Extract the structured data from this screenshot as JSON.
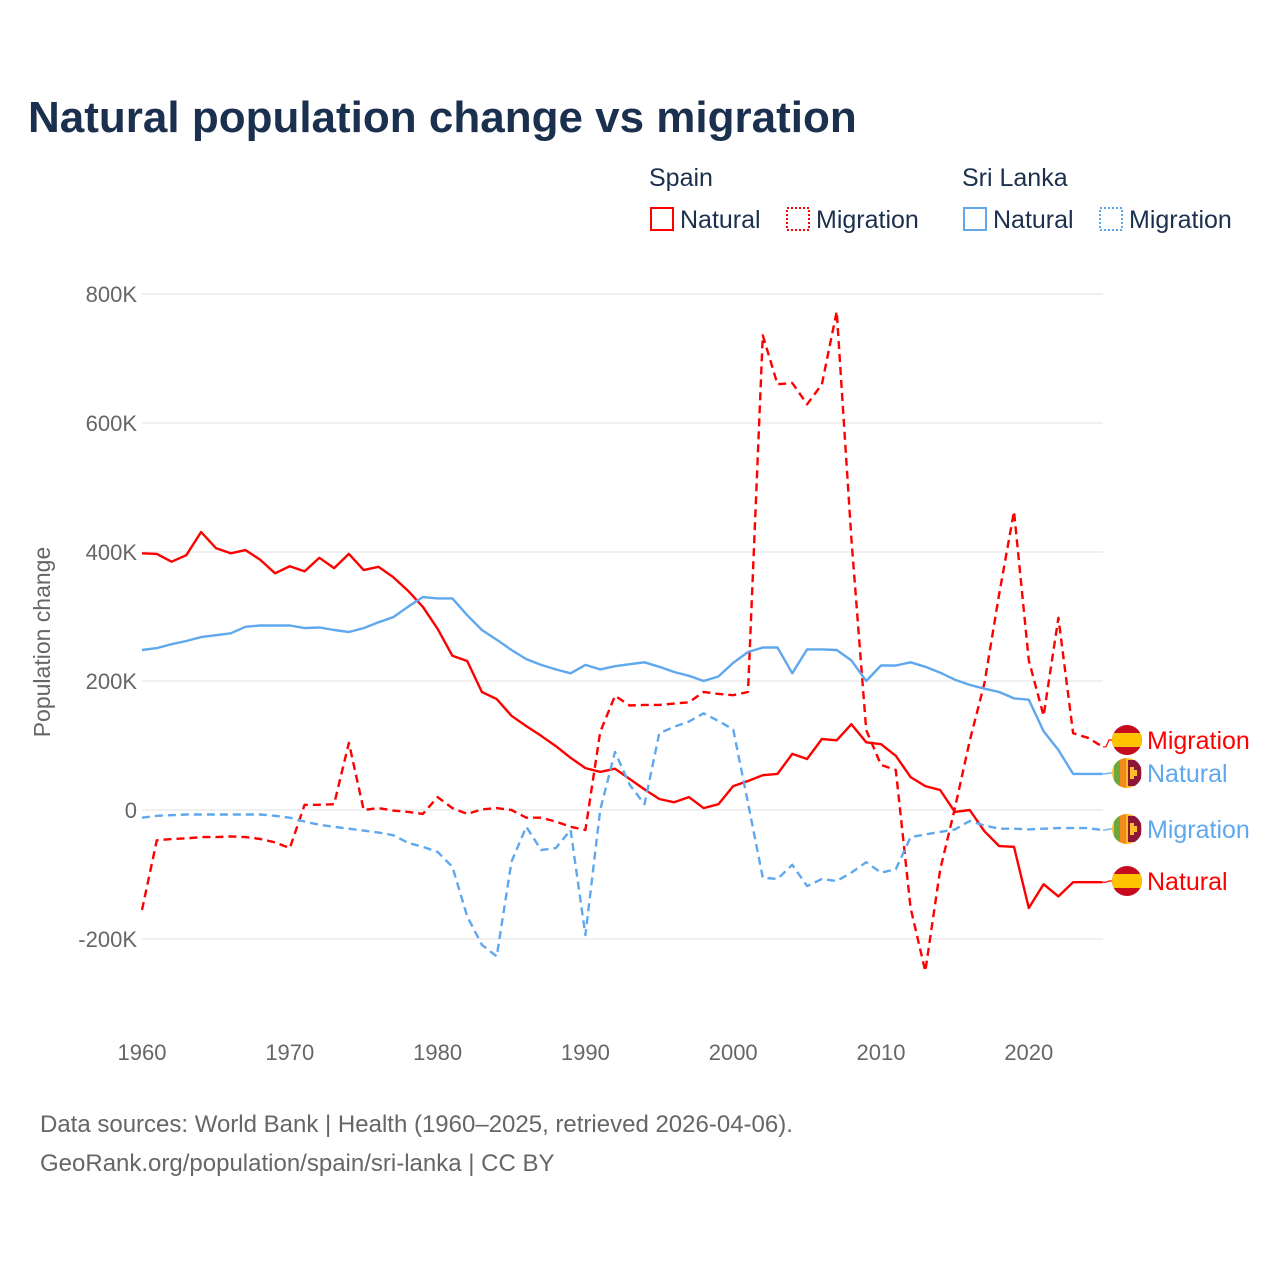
{
  "chart_data": {
    "type": "line",
    "title": "Natural population change vs migration",
    "xlabel": "",
    "ylabel": "Population change",
    "xlim": [
      1960,
      2025
    ],
    "ylim": [
      -300000,
      800000
    ],
    "x_ticks": [
      "1960",
      "1970",
      "1980",
      "1990",
      "2000",
      "2010",
      "2020"
    ],
    "y_ticks": [
      {
        "value": 800000,
        "label": "800K"
      },
      {
        "value": 600000,
        "label": "600K"
      },
      {
        "value": 400000,
        "label": "400K"
      },
      {
        "value": 200000,
        "label": "200K"
      },
      {
        "value": 0,
        "label": "0"
      },
      {
        "value": -200000,
        "label": "-200K"
      }
    ],
    "grid": true,
    "legend": {
      "placement": "top-right",
      "groups": [
        {
          "country": "Spain",
          "items": [
            "Natural",
            "Migration"
          ]
        },
        {
          "country": "Sri Lanka",
          "items": [
            "Natural",
            "Migration"
          ]
        }
      ]
    },
    "x": [
      1960,
      1961,
      1962,
      1963,
      1964,
      1965,
      1966,
      1967,
      1968,
      1969,
      1970,
      1971,
      1972,
      1973,
      1974,
      1975,
      1976,
      1977,
      1978,
      1979,
      1980,
      1981,
      1982,
      1983,
      1984,
      1985,
      1986,
      1987,
      1988,
      1989,
      1990,
      1991,
      1992,
      1993,
      1994,
      1995,
      1996,
      1997,
      1998,
      1999,
      2000,
      2001,
      2002,
      2003,
      2004,
      2005,
      2006,
      2007,
      2008,
      2009,
      2010,
      2011,
      2012,
      2013,
      2014,
      2015,
      2016,
      2017,
      2018,
      2019,
      2020,
      2021,
      2022,
      2023,
      2024,
      2025
    ],
    "series": [
      {
        "name": "Spain Natural",
        "country": "Spain",
        "kind": "Natural",
        "color": "#ff0000",
        "dashed": false,
        "end_label": "Natural",
        "values": [
          398000,
          397000,
          385000,
          395000,
          431000,
          406000,
          398000,
          403000,
          388000,
          367000,
          378000,
          370000,
          391000,
          375000,
          397000,
          372000,
          377000,
          361000,
          340000,
          315000,
          281000,
          239000,
          231000,
          183000,
          172000,
          146000,
          130000,
          115000,
          99000,
          81000,
          65000,
          59000,
          64000,
          48000,
          32000,
          17000,
          12000,
          20000,
          3000,
          9000,
          37000,
          45000,
          54000,
          56000,
          87000,
          79000,
          110000,
          108000,
          133000,
          105000,
          102000,
          84000,
          51000,
          37000,
          31000,
          -3000,
          0,
          -33000,
          -56000,
          -57000,
          -152000,
          -115000,
          -134000,
          -112000,
          -112000,
          -112000
        ]
      },
      {
        "name": "Spain Migration",
        "country": "Spain",
        "kind": "Migration",
        "color": "#ff0000",
        "dashed": true,
        "end_label": "Migration",
        "values": [
          -155000,
          -47000,
          -45000,
          -44000,
          -42000,
          -42000,
          -41000,
          -42000,
          -45000,
          -50000,
          -59000,
          8000,
          8000,
          9000,
          104000,
          0,
          3000,
          -1000,
          -3000,
          -6000,
          20000,
          3000,
          -6000,
          1000,
          3000,
          0,
          -12000,
          -12000,
          -18000,
          -26000,
          -31000,
          121000,
          177000,
          162000,
          163000,
          163000,
          165000,
          167000,
          183000,
          180000,
          178000,
          183000,
          736000,
          660000,
          662000,
          629000,
          660000,
          773000,
          420000,
          124000,
          70000,
          62000,
          -152000,
          -250000,
          -93000,
          3000,
          107000,
          197000,
          335000,
          463000,
          232000,
          146000,
          298000,
          119000,
          112000,
          98000
        ]
      },
      {
        "name": "Sri Lanka Natural",
        "country": "Sri Lanka",
        "kind": "Natural",
        "color": "#5fa8ee",
        "dashed": false,
        "end_label": "Natural",
        "values": [
          248000,
          251000,
          257000,
          262000,
          268000,
          271000,
          274000,
          284000,
          286000,
          286000,
          286000,
          282000,
          283000,
          279000,
          276000,
          282000,
          291000,
          299000,
          315000,
          330000,
          328000,
          328000,
          302000,
          279000,
          264000,
          248000,
          234000,
          225000,
          218000,
          212000,
          225000,
          218000,
          223000,
          226000,
          229000,
          222000,
          214000,
          208000,
          200000,
          207000,
          228000,
          245000,
          252000,
          252000,
          212000,
          249000,
          249000,
          248000,
          232000,
          200000,
          224000,
          224000,
          229000,
          222000,
          213000,
          202000,
          194000,
          188000,
          183000,
          173000,
          171000,
          122000,
          93000,
          56000,
          56000,
          56000
        ]
      },
      {
        "name": "Sri Lanka Migration",
        "country": "Sri Lanka",
        "kind": "Migration",
        "color": "#5fa8ee",
        "dashed": true,
        "end_label": "Migration",
        "values": [
          -12000,
          -9000,
          -8000,
          -7000,
          -7000,
          -7000,
          -7000,
          -7000,
          -7000,
          -9000,
          -12000,
          -18000,
          -23000,
          -26000,
          -29000,
          -32000,
          -35000,
          -39000,
          -51000,
          -57000,
          -65000,
          -88000,
          -165000,
          -209000,
          -227000,
          -80000,
          -26000,
          -62000,
          -59000,
          -31000,
          -194000,
          0,
          90000,
          39000,
          9000,
          119000,
          129000,
          137000,
          150000,
          138000,
          125000,
          11000,
          -105000,
          -107000,
          -85000,
          -118000,
          -107000,
          -110000,
          -97000,
          -81000,
          -97000,
          -92000,
          -42000,
          -38000,
          -34000,
          -30000,
          -17000,
          -24000,
          -29000,
          -29000,
          -30000,
          -29000,
          -28000,
          -28000,
          -28000,
          -31000
        ]
      }
    ],
    "footer": {
      "line1": "Data sources: World Bank | Health (1960–2025, retrieved 2026-04-06).",
      "line2": "GeoRank.org/population/spain/sri-lanka | CC BY"
    }
  }
}
